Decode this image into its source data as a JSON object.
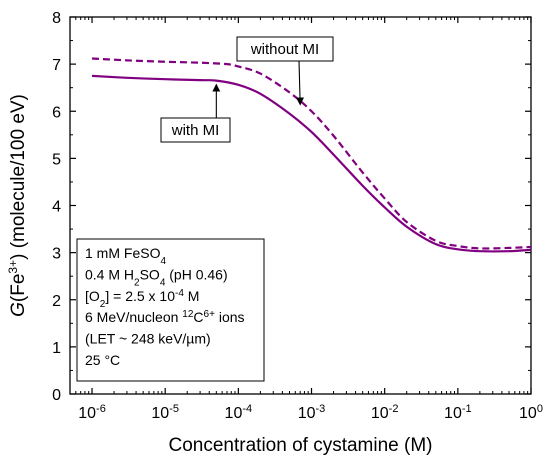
{
  "chart_data": {
    "type": "line",
    "xlabel": "Concentration of cystamine (M)",
    "ylabel_parts": {
      "pre": "G",
      "mid": "(Fe",
      "sup": "3+",
      "post": ") (molecule/100 eV)"
    },
    "xscale": "log",
    "xlim": [
      5e-07,
      1
    ],
    "ylim": [
      0,
      8
    ],
    "x_tick_exponents": [
      -6,
      -5,
      -4,
      -3,
      -2,
      -1,
      0
    ],
    "x_tick_base": "10",
    "y_ticks": [
      0,
      1,
      2,
      3,
      4,
      5,
      6,
      7,
      8
    ],
    "grid": false,
    "series": [
      {
        "name": "with MI",
        "style": "solid",
        "color": "#800080",
        "points": [
          [
            1e-06,
            6.75
          ],
          [
            3e-06,
            6.71
          ],
          [
            1e-05,
            6.68
          ],
          [
            3e-05,
            6.66
          ],
          [
            5e-05,
            6.65
          ],
          [
            0.0001,
            6.56
          ],
          [
            0.0002,
            6.37
          ],
          [
            0.0005,
            5.95
          ],
          [
            0.001,
            5.56
          ],
          [
            0.002,
            5.08
          ],
          [
            0.005,
            4.42
          ],
          [
            0.01,
            3.96
          ],
          [
            0.02,
            3.55
          ],
          [
            0.05,
            3.18
          ],
          [
            0.1,
            3.07
          ],
          [
            0.2,
            3.03
          ],
          [
            0.5,
            3.03
          ],
          [
            1,
            3.06
          ]
        ]
      },
      {
        "name": "without MI",
        "style": "dashed",
        "color": "#800080",
        "points": [
          [
            1e-06,
            7.12
          ],
          [
            3e-06,
            7.08
          ],
          [
            1e-05,
            7.05
          ],
          [
            3e-05,
            7.03
          ],
          [
            7e-05,
            7.0
          ],
          [
            0.0001,
            6.95
          ],
          [
            0.0002,
            6.8
          ],
          [
            0.0005,
            6.4
          ],
          [
            0.001,
            6.0
          ],
          [
            0.002,
            5.48
          ],
          [
            0.005,
            4.7
          ],
          [
            0.01,
            4.15
          ],
          [
            0.02,
            3.65
          ],
          [
            0.05,
            3.25
          ],
          [
            0.1,
            3.14
          ],
          [
            0.2,
            3.09
          ],
          [
            0.5,
            3.1
          ],
          [
            1,
            3.12
          ]
        ]
      }
    ],
    "annotations": [
      {
        "label": "without MI",
        "points_to": [
          0.0007,
          6.1
        ]
      },
      {
        "label": "with MI",
        "points_to": [
          5e-05,
          6.65
        ]
      }
    ],
    "info_box": [
      {
        "parts": [
          {
            "t": "1 mM FeSO"
          },
          {
            "t": "4",
            "s": "sub"
          }
        ]
      },
      {
        "parts": [
          {
            "t": "0.4 M H"
          },
          {
            "t": "2",
            "s": "sub"
          },
          {
            "t": "SO"
          },
          {
            "t": "4",
            "s": "sub"
          },
          {
            "t": " (pH 0.46)"
          }
        ]
      },
      {
        "parts": [
          {
            "t": "[O"
          },
          {
            "t": "2",
            "s": "sub"
          },
          {
            "t": "] = 2.5 x 10"
          },
          {
            "t": "-4",
            "s": "sup"
          },
          {
            "t": " M"
          }
        ]
      },
      {
        "parts": [
          {
            "t": "6 MeV/nucleon "
          },
          {
            "t": "12",
            "s": "sup"
          },
          {
            "t": "C"
          },
          {
            "t": "6+",
            "s": "sup"
          },
          {
            "t": " ions"
          }
        ]
      },
      {
        "parts": [
          {
            "t": "(LET ~ 248 keV/µm)"
          }
        ]
      },
      {
        "parts": [
          {
            "t": "25 °C"
          }
        ]
      }
    ]
  }
}
